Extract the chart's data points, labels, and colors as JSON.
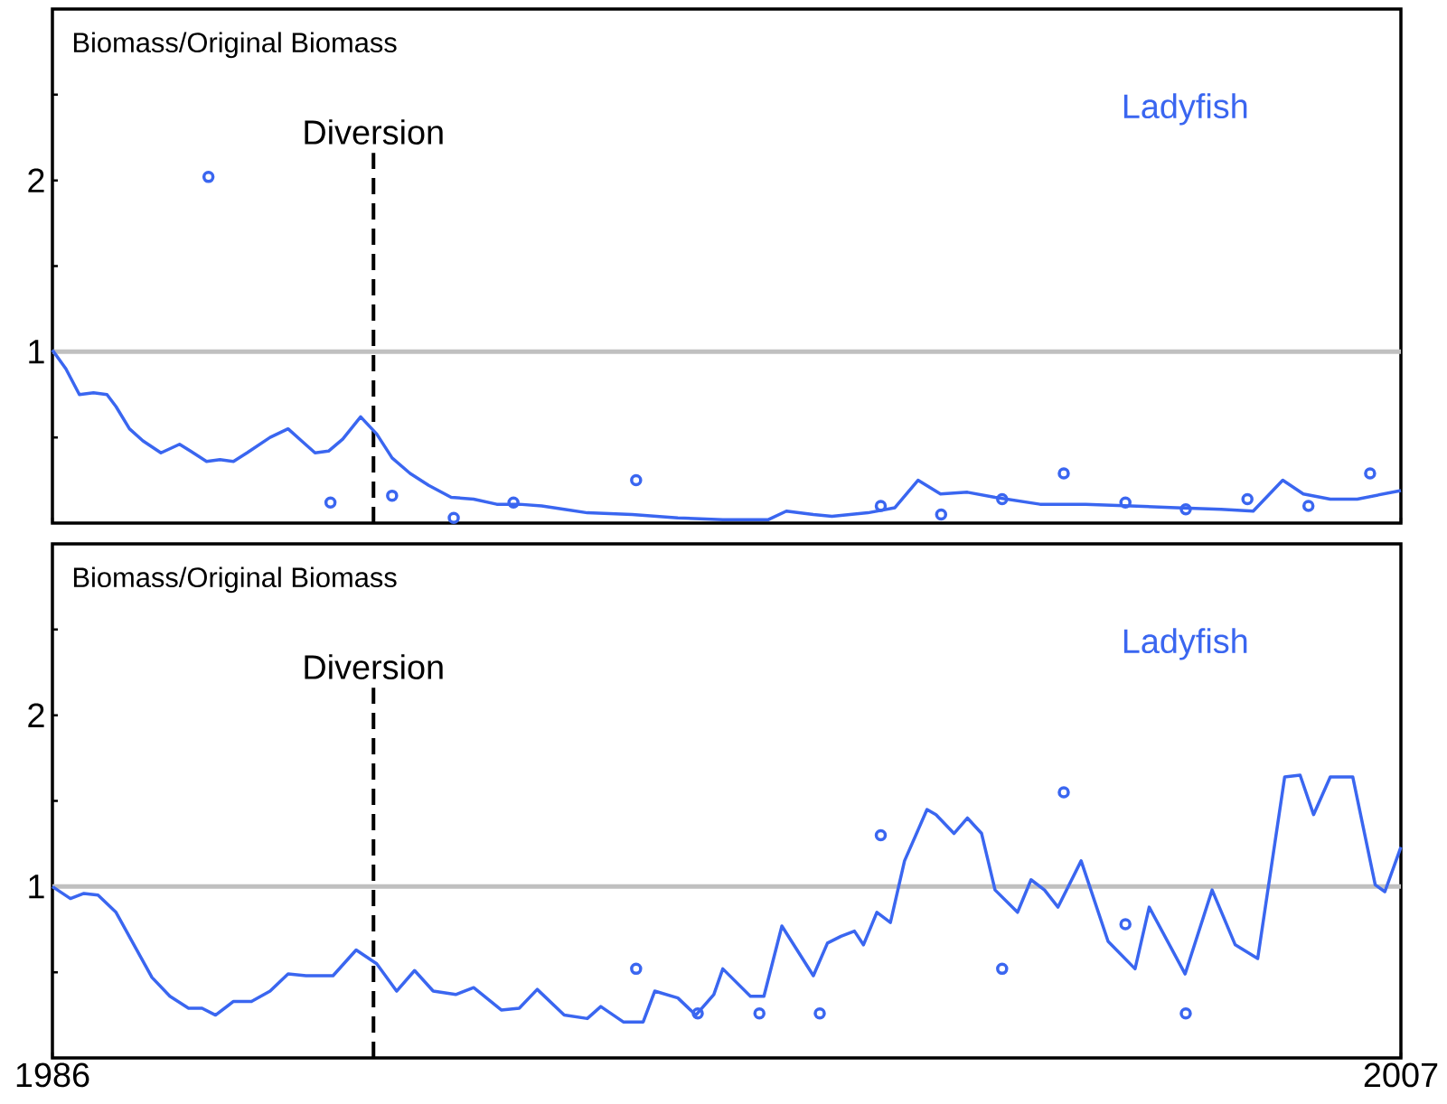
{
  "chart_data": [
    {
      "type": "line",
      "ylabel": "Biomass/Original Biomass",
      "xlim": [
        1986,
        2007
      ],
      "xticks": [
        1986,
        2007
      ],
      "ylim": [
        0,
        3
      ],
      "yticks": [
        {
          "value": 0.5,
          "label": null
        },
        1,
        {
          "value": 1.5,
          "label": null
        },
        2,
        {
          "value": 2.5,
          "label": null
        }
      ],
      "tick_labels": "y",
      "ref_lines": [
        {
          "axis": "y",
          "value": 1,
          "label": null,
          "color": "#c0c0c0",
          "line_style": "solid"
        },
        {
          "axis": "x",
          "value": 1991,
          "label": "Diversion",
          "color": "#000000",
          "line_style": "dashed"
        }
      ],
      "series": [
        {
          "name": "Ladyfish",
          "color": "#3a66f0",
          "marker": "none",
          "x": [
            1986.0,
            1986.21,
            1986.42,
            1986.64,
            1986.85,
            1986.99,
            1987.2,
            1987.41,
            1987.69,
            1987.98,
            1988.15,
            1988.4,
            1988.61,
            1988.82,
            1989.03,
            1989.39,
            1989.67,
            1989.88,
            1990.09,
            1990.3,
            1990.52,
            1990.8,
            1991.05,
            1991.29,
            1991.57,
            1991.86,
            1992.21,
            1992.56,
            1992.92,
            1993.27,
            1993.62,
            1993.97,
            1994.33,
            1995.03,
            1995.74,
            1996.44,
            1997.15,
            1997.43,
            1997.85,
            1998.14,
            1998.7,
            1999.12,
            1999.48,
            1999.83,
            2000.25,
            2000.68,
            2001.38,
            2002.09,
            2002.79,
            2003.5,
            2004.2,
            2004.7,
            2005.16,
            2005.48,
            2005.9,
            2006.32,
            2007.0
          ],
          "values": [
            1.01,
            0.9,
            0.75,
            0.76,
            0.75,
            0.68,
            0.55,
            0.48,
            0.41,
            0.46,
            0.42,
            0.36,
            0.37,
            0.36,
            0.41,
            0.5,
            0.55,
            0.48,
            0.41,
            0.42,
            0.49,
            0.62,
            0.52,
            0.38,
            0.29,
            0.22,
            0.15,
            0.14,
            0.11,
            0.11,
            0.1,
            0.08,
            0.06,
            0.05,
            0.03,
            0.02,
            0.02,
            0.07,
            0.05,
            0.04,
            0.06,
            0.09,
            0.25,
            0.17,
            0.18,
            0.15,
            0.11,
            0.11,
            0.1,
            0.09,
            0.08,
            0.07,
            0.25,
            0.17,
            0.14,
            0.14,
            0.19
          ]
        },
        {
          "type": "scatter",
          "color": "#3a66f0",
          "marker": "circle",
          "x": [
            1988.43,
            1990.33,
            1991.29,
            1992.25,
            1993.18,
            1995.09,
            1998.9,
            1999.84,
            2000.79,
            2001.75,
            2002.71,
            2003.65,
            2004.61,
            2005.56,
            2006.52
          ],
          "values": [
            2.02,
            0.12,
            0.16,
            0.03,
            0.12,
            0.25,
            0.1,
            0.05,
            0.14,
            0.29,
            0.12,
            0.08,
            0.14,
            0.1,
            0.29
          ]
        }
      ]
    },
    {
      "type": "line",
      "ylabel": "Biomass/Original Biomass",
      "xlim": [
        1986,
        2007
      ],
      "xticks": [
        1986,
        2007
      ],
      "ylim": [
        0,
        3
      ],
      "yticks": [
        {
          "value": 0.5,
          "label": null
        },
        1,
        {
          "value": 1.5,
          "label": null
        },
        2,
        {
          "value": 2.5,
          "label": null
        }
      ],
      "ref_lines": [
        {
          "axis": "y",
          "value": 1,
          "label": null,
          "color": "#c0c0c0",
          "line_style": "solid"
        },
        {
          "axis": "x",
          "value": 1991,
          "label": "Diversion",
          "color": "#000000",
          "line_style": "dashed"
        }
      ],
      "series": [
        {
          "name": "Ladyfish",
          "color": "#3a66f0",
          "marker": "none",
          "x": [
            1986.0,
            1986.28,
            1986.49,
            1986.71,
            1986.99,
            1987.27,
            1987.55,
            1987.83,
            1988.12,
            1988.33,
            1988.54,
            1988.82,
            1989.1,
            1989.39,
            1989.67,
            1989.95,
            1990.37,
            1990.73,
            1991.05,
            1991.36,
            1991.64,
            1991.93,
            1992.28,
            1992.56,
            1992.99,
            1993.27,
            1993.55,
            1993.97,
            1994.33,
            1994.54,
            1994.89,
            1995.2,
            1995.38,
            1995.74,
            1996.02,
            1996.3,
            1996.44,
            1996.87,
            1997.08,
            1997.36,
            1997.85,
            1998.07,
            1998.28,
            1998.49,
            1998.63,
            1998.84,
            1999.05,
            1999.27,
            1999.62,
            1999.76,
            2000.04,
            2000.25,
            2000.47,
            2000.68,
            2001.03,
            2001.24,
            2001.45,
            2001.66,
            2002.02,
            2002.44,
            2002.86,
            2003.08,
            2003.64,
            2004.06,
            2004.42,
            2004.77,
            2005.19,
            2005.43,
            2005.64,
            2005.9,
            2006.25,
            2006.6,
            2006.75,
            2007.0
          ],
          "values": [
            1.0,
            0.93,
            0.96,
            0.95,
            0.85,
            0.66,
            0.47,
            0.36,
            0.29,
            0.29,
            0.25,
            0.33,
            0.33,
            0.39,
            0.49,
            0.48,
            0.48,
            0.63,
            0.55,
            0.39,
            0.51,
            0.39,
            0.37,
            0.41,
            0.28,
            0.29,
            0.4,
            0.25,
            0.23,
            0.3,
            0.21,
            0.21,
            0.39,
            0.35,
            0.25,
            0.37,
            0.52,
            0.36,
            0.36,
            0.77,
            0.48,
            0.67,
            0.71,
            0.74,
            0.66,
            0.85,
            0.79,
            1.15,
            1.45,
            1.42,
            1.31,
            1.4,
            1.31,
            0.98,
            0.85,
            1.04,
            0.98,
            0.88,
            1.15,
            0.68,
            0.52,
            0.88,
            0.49,
            0.98,
            0.66,
            0.58,
            1.64,
            1.65,
            1.42,
            1.64,
            1.64,
            1.01,
            0.97,
            1.23
          ]
        },
        {
          "type": "scatter",
          "color": "#3a66f0",
          "marker": "circle",
          "x": [
            1995.09,
            1996.05,
            1997.01,
            1997.95,
            1998.9,
            2000.79,
            2001.75,
            2002.71,
            2003.65
          ],
          "values": [
            0.52,
            0.26,
            0.26,
            0.26,
            1.3,
            0.52,
            1.55,
            0.78,
            0.26
          ]
        }
      ]
    }
  ]
}
